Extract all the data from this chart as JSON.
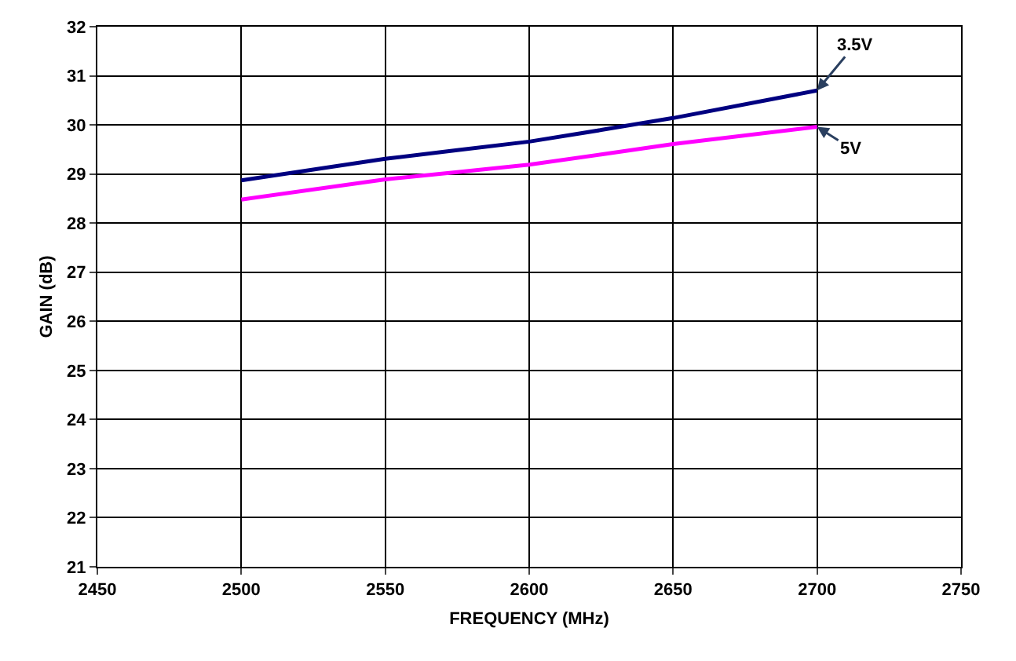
{
  "chart_data": {
    "type": "line",
    "xlabel": "FREQUENCY (MHz)",
    "ylabel": "GAIN (dB)",
    "x": [
      2500,
      2550,
      2600,
      2650,
      2700
    ],
    "series": [
      {
        "color": "#000080",
        "values": [
          28.87,
          29.31,
          29.66,
          30.14,
          30.7
        ]
      },
      {
        "color": "#ff00ff",
        "values": [
          28.48,
          28.89,
          29.19,
          29.61,
          29.96
        ]
      }
    ],
    "annotations": [
      {
        "text": "3.5V",
        "x": 2700,
        "y": 30.7
      },
      {
        "text": "5V",
        "x": 2700,
        "y": 29.96
      }
    ],
    "xlim": [
      2450,
      2750
    ],
    "xticks": [
      2450,
      2500,
      2550,
      2600,
      2650,
      2700,
      2750
    ],
    "ylim": [
      21,
      32
    ],
    "yticks": [
      21,
      22,
      23,
      24,
      25,
      26,
      27,
      28,
      29,
      30,
      31,
      32
    ],
    "grid": true,
    "marker": "none",
    "line_style": "solid"
  }
}
